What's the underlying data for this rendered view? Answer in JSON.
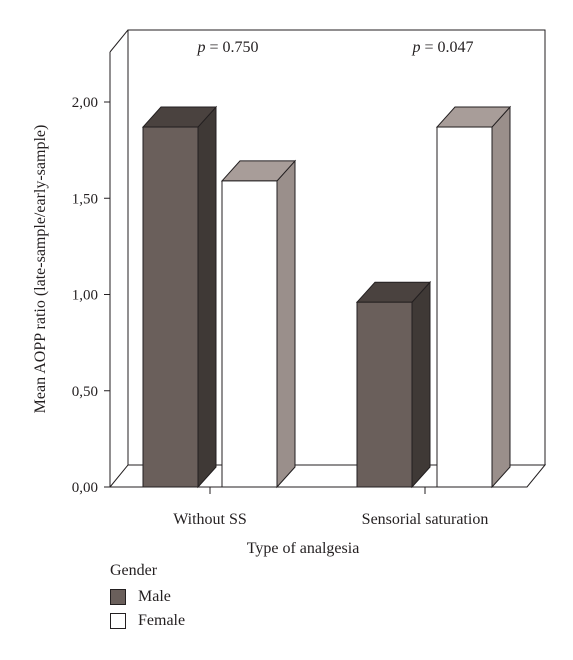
{
  "chart_data": {
    "type": "bar",
    "title": "",
    "xlabel": "Type of analgesia",
    "ylabel": "Mean AOPP ratio (late-sample/early-sample)",
    "categories": [
      "Without SS",
      "Sensorial saturation"
    ],
    "series": [
      {
        "name": "Male",
        "values": [
          1.87,
          0.96
        ],
        "color": "#6a5f5b"
      },
      {
        "name": "Female",
        "values": [
          1.59,
          1.87
        ],
        "color": "#ffffff"
      }
    ],
    "ylim": [
      0,
      2.0
    ],
    "yticks": [
      "0,00",
      "0,50",
      "1,00",
      "1,50",
      "2,00"
    ],
    "annotations": [
      {
        "category": "Without SS",
        "prefix": "p",
        "text": " = 0.750"
      },
      {
        "category": "Sensorial saturation",
        "prefix": "p",
        "text": " = 0.047"
      }
    ],
    "grid": false,
    "style": "3d",
    "legend": {
      "title": "Gender",
      "position": "bottom-left"
    }
  }
}
